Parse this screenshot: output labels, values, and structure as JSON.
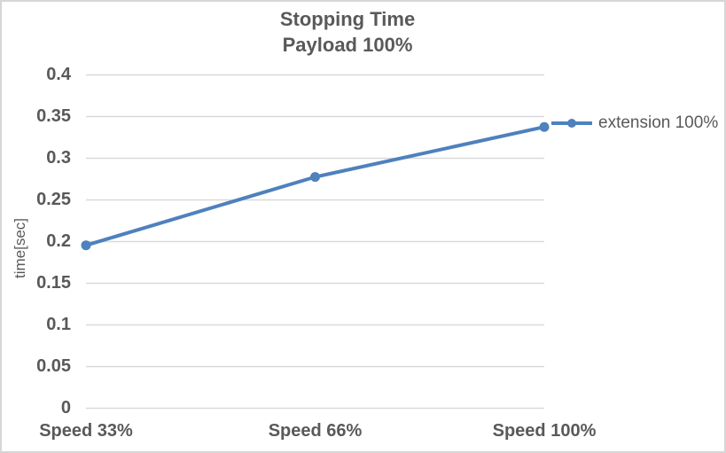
{
  "chart": {
    "title_line1": "Stopping Time",
    "title_line2": "Payload 100%",
    "y_axis_title": "time[sec]",
    "legend_label": "extension 100%"
  },
  "chart_data": {
    "type": "line",
    "title": "Stopping Time Payload 100%",
    "categories": [
      "Speed 33%",
      "Speed 66%",
      "Speed 100%"
    ],
    "series": [
      {
        "name": "extension 100%",
        "values": [
          0.195,
          0.277,
          0.337
        ]
      }
    ],
    "xlabel": "",
    "ylabel": "time[sec]",
    "ylim": [
      0,
      0.4
    ],
    "y_tick_step": 0.05,
    "y_ticks": [
      0,
      0.05,
      0.1,
      0.15,
      0.2,
      0.25,
      0.3,
      0.35,
      0.4
    ],
    "y_tick_labels": [
      "0",
      "0.05",
      "0.1",
      "0.15",
      "0.2",
      "0.25",
      "0.3",
      "0.35",
      "0.4"
    ],
    "grid": true,
    "legend_position": "right",
    "marker": "circle",
    "colors": {
      "series": "#4E81BD",
      "grid": "#D9D9D9",
      "text": "#595959"
    }
  }
}
